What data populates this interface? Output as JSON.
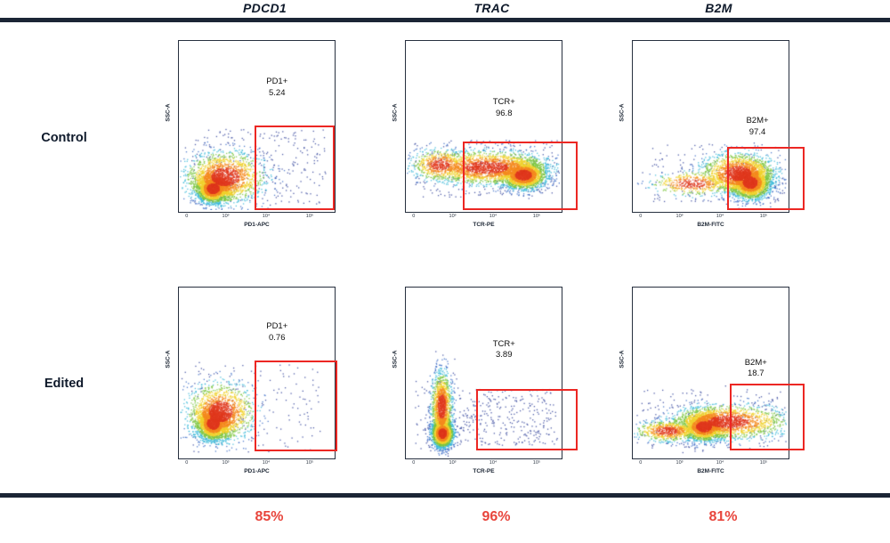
{
  "figure": {
    "background": "#ffffff",
    "navy": "#1b2535",
    "accent_red": "#e8453c",
    "gate_red": "#ec2723",
    "density_colors": [
      "#e0391f",
      "#f58b1f",
      "#f0d12b",
      "#7cc540",
      "#38b8d8",
      "#3a6bc7",
      "#35459c"
    ],
    "density_thresholds": [
      0.7,
      1.1,
      1.5,
      1.9,
      2.4,
      3.0
    ]
  },
  "columns": [
    {
      "gene": "PDCD1"
    },
    {
      "gene": "TRAC"
    },
    {
      "gene": "B2M"
    }
  ],
  "rows": [
    {
      "label": "Control"
    },
    {
      "label": "Edited"
    }
  ],
  "summary": [
    {
      "value": "85%"
    },
    {
      "value": "96%"
    },
    {
      "value": "81%"
    }
  ],
  "chart_data": [
    {
      "type": "scatter-density",
      "row": "Control",
      "gene": "PDCD1",
      "gate_label": "PD1+",
      "gate_value": "5.24",
      "x_label": "PD1-APC",
      "y_label": "SSC-A",
      "x_ticks": [
        {
          "t": "0",
          "x": 0.05
        },
        {
          "t": "10³",
          "x": 0.3
        },
        {
          "t": "10⁴",
          "x": 0.56
        },
        {
          "t": "10⁵",
          "x": 0.84
        }
      ],
      "gate": {
        "x0": 0.486,
        "y0": 0.495,
        "x1": 0.977,
        "y1": 0.969
      },
      "annotation": {
        "x": 0.63,
        "y": 0.21
      },
      "seed": 11,
      "clusters": [
        {
          "cx": 0.22,
          "cy": 0.87,
          "sx": 0.055,
          "sy": 0.042,
          "n": 2600
        },
        {
          "cx": 0.3,
          "cy": 0.8,
          "sx": 0.13,
          "sy": 0.075,
          "n": 1600
        }
      ],
      "noise": [
        {
          "x0": 0.08,
          "x1": 0.95,
          "y0": 0.52,
          "y1": 0.97,
          "n": 280
        }
      ]
    },
    {
      "type": "scatter-density",
      "row": "Control",
      "gene": "TRAC",
      "gate_label": "TCR+",
      "gate_value": "96.8",
      "x_label": "TCR-PE",
      "y_label": "SSC-A",
      "x_ticks": [
        {
          "t": "0",
          "x": 0.05
        },
        {
          "t": "10³",
          "x": 0.3
        },
        {
          "t": "10⁴",
          "x": 0.56
        },
        {
          "t": "10⁵",
          "x": 0.84
        }
      ],
      "gate": {
        "x0": 0.366,
        "y0": 0.59,
        "x1": 1.08,
        "y1": 0.969
      },
      "annotation": {
        "x": 0.63,
        "y": 0.33
      },
      "seed": 22,
      "clusters": [
        {
          "cx": 0.76,
          "cy": 0.79,
          "sx": 0.075,
          "sy": 0.042,
          "n": 2400
        },
        {
          "cx": 0.52,
          "cy": 0.745,
          "sx": 0.2,
          "sy": 0.05,
          "n": 2000
        },
        {
          "cx": 0.22,
          "cy": 0.73,
          "sx": 0.09,
          "sy": 0.045,
          "n": 500
        }
      ],
      "noise": [
        {
          "x0": 0.05,
          "x1": 0.99,
          "y0": 0.58,
          "y1": 0.92,
          "n": 220
        }
      ]
    },
    {
      "type": "scatter-density",
      "row": "Control",
      "gene": "B2M",
      "gate_label": "B2M+",
      "gate_value": "97.4",
      "x_label": "B2M-FITC",
      "y_label": "SSC-A",
      "x_ticks": [
        {
          "t": "0",
          "x": 0.05
        },
        {
          "t": "10³",
          "x": 0.3
        },
        {
          "t": "10⁴",
          "x": 0.56
        },
        {
          "t": "10⁵",
          "x": 0.84
        }
      ],
      "gate": {
        "x0": 0.606,
        "y0": 0.62,
        "x1": 1.08,
        "y1": 0.969
      },
      "annotation": {
        "x": 0.8,
        "y": 0.44
      },
      "seed": 33,
      "clusters": [
        {
          "cx": 0.76,
          "cy": 0.835,
          "sx": 0.065,
          "sy": 0.048,
          "n": 2600
        },
        {
          "cx": 0.68,
          "cy": 0.78,
          "sx": 0.12,
          "sy": 0.06,
          "n": 1500
        },
        {
          "cx": 0.38,
          "cy": 0.84,
          "sx": 0.13,
          "sy": 0.035,
          "n": 450
        }
      ],
      "noise": [
        {
          "x0": 0.12,
          "x1": 0.99,
          "y0": 0.6,
          "y1": 0.95,
          "n": 160
        }
      ]
    },
    {
      "type": "scatter-density",
      "row": "Edited",
      "gene": "PDCD1",
      "gate_label": "PD1+",
      "gate_value": "0.76",
      "x_label": "PD1-APC",
      "y_label": "SSC-A",
      "x_ticks": [
        {
          "t": "0",
          "x": 0.05
        },
        {
          "t": "10³",
          "x": 0.3
        },
        {
          "t": "10⁴",
          "x": 0.56
        },
        {
          "t": "10⁵",
          "x": 0.84
        }
      ],
      "gate": {
        "x0": 0.486,
        "y0": 0.427,
        "x1": 0.994,
        "y1": 0.937
      },
      "annotation": {
        "x": 0.63,
        "y": 0.2
      },
      "seed": 44,
      "clusters": [
        {
          "cx": 0.22,
          "cy": 0.8,
          "sx": 0.055,
          "sy": 0.05,
          "n": 2600
        },
        {
          "cx": 0.27,
          "cy": 0.73,
          "sx": 0.11,
          "sy": 0.085,
          "n": 1300
        }
      ],
      "noise": [
        {
          "x0": 0.08,
          "x1": 0.92,
          "y0": 0.45,
          "y1": 0.97,
          "n": 160
        }
      ]
    },
    {
      "type": "scatter-density",
      "row": "Edited",
      "gene": "TRAC",
      "gate_label": "TCR+",
      "gate_value": "3.89",
      "x_label": "TCR-PE",
      "y_label": "SSC-A",
      "x_ticks": [
        {
          "t": "0",
          "x": 0.05
        },
        {
          "t": "10³",
          "x": 0.3
        },
        {
          "t": "10⁴",
          "x": 0.56
        },
        {
          "t": "10⁵",
          "x": 0.84
        }
      ],
      "gate": {
        "x0": 0.451,
        "y0": 0.594,
        "x1": 1.08,
        "y1": 0.932
      },
      "annotation": {
        "x": 0.63,
        "y": 0.3
      },
      "seed": 55,
      "clusters": [
        {
          "cx": 0.235,
          "cy": 0.86,
          "sx": 0.035,
          "sy": 0.04,
          "n": 2200
        },
        {
          "cx": 0.23,
          "cy": 0.7,
          "sx": 0.033,
          "sy": 0.1,
          "n": 1400
        }
      ],
      "noise": [
        {
          "x0": 0.33,
          "x1": 0.98,
          "y0": 0.6,
          "y1": 0.93,
          "n": 300
        },
        {
          "x0": 0.05,
          "x1": 0.3,
          "y0": 0.55,
          "y1": 0.95,
          "n": 80
        }
      ]
    },
    {
      "type": "scatter-density",
      "row": "Edited",
      "gene": "B2M",
      "gate_label": "B2M+",
      "gate_value": "18.7",
      "x_label": "B2M-FITC",
      "y_label": "SSC-A",
      "x_ticks": [
        {
          "t": "0",
          "x": 0.05
        },
        {
          "t": "10³",
          "x": 0.3
        },
        {
          "t": "10⁴",
          "x": 0.56
        },
        {
          "t": "10⁵",
          "x": 0.84
        }
      ],
      "gate": {
        "x0": 0.623,
        "y0": 0.5625,
        "x1": 1.08,
        "y1": 0.932
      },
      "annotation": {
        "x": 0.79,
        "y": 0.41
      },
      "seed": 66,
      "clusters": [
        {
          "cx": 0.46,
          "cy": 0.82,
          "sx": 0.07,
          "sy": 0.042,
          "n": 2200
        },
        {
          "cx": 0.62,
          "cy": 0.79,
          "sx": 0.19,
          "sy": 0.05,
          "n": 1700
        },
        {
          "cx": 0.22,
          "cy": 0.845,
          "sx": 0.1,
          "sy": 0.03,
          "n": 600
        }
      ],
      "noise": [
        {
          "x0": 0.05,
          "x1": 0.99,
          "y0": 0.6,
          "y1": 0.95,
          "n": 180
        }
      ]
    }
  ]
}
